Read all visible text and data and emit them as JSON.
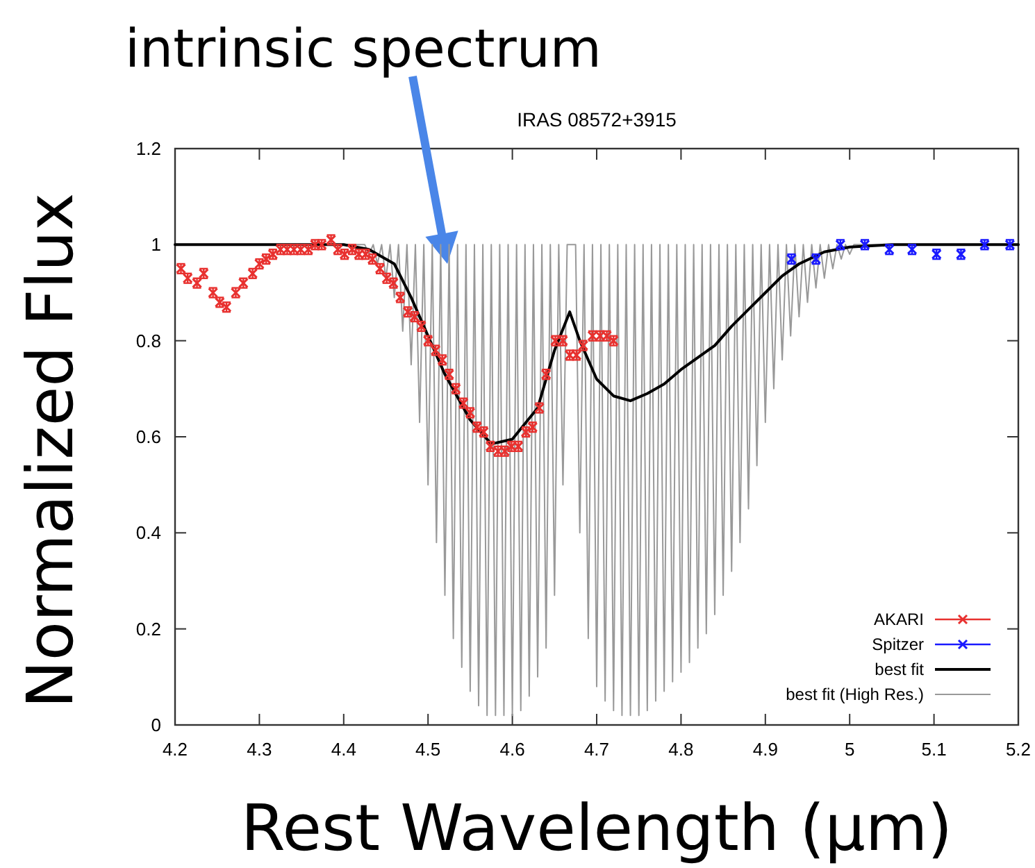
{
  "chart_data": {
    "type": "line",
    "title": "IRAS 08572+3915",
    "xlabel": "Rest Wavelength (μm)",
    "ylabel": "Normalized Flux",
    "xlim": [
      4.2,
      5.2
    ],
    "xticks": [
      4.2,
      4.3,
      4.4,
      4.5,
      4.6,
      4.7,
      4.8,
      4.9,
      5.0,
      5.1,
      5.2
    ],
    "ylim": [
      0,
      1.2
    ],
    "yticks": [
      0,
      0.2,
      0.4,
      0.6,
      0.8,
      1,
      1.2
    ],
    "grid": false,
    "legend": "bottom right",
    "annotations": [
      "intrinsic spectrum"
    ],
    "series": [
      {
        "name": "best fit (High Res.)",
        "type": "line",
        "color": "#999999",
        "x": [
          4.2,
          4.425,
          4.43,
          4.435,
          4.44,
          4.445,
          4.45,
          4.455,
          4.46,
          4.465,
          4.47,
          4.475,
          4.48,
          4.485,
          4.49,
          4.495,
          4.5,
          4.505,
          4.51,
          4.515,
          4.52,
          4.525,
          4.53,
          4.535,
          4.54,
          4.545,
          4.55,
          4.555,
          4.56,
          4.565,
          4.57,
          4.575,
          4.58,
          4.585,
          4.59,
          4.595,
          4.6,
          4.605,
          4.61,
          4.615,
          4.62,
          4.625,
          4.63,
          4.635,
          4.64,
          4.645,
          4.65,
          4.655,
          4.66,
          4.665,
          4.675,
          4.68,
          4.685,
          4.69,
          4.695,
          4.7,
          4.705,
          4.71,
          4.715,
          4.72,
          4.725,
          4.73,
          4.735,
          4.74,
          4.745,
          4.75,
          4.755,
          4.76,
          4.765,
          4.77,
          4.775,
          4.78,
          4.785,
          4.79,
          4.795,
          4.8,
          4.805,
          4.81,
          4.815,
          4.82,
          4.825,
          4.83,
          4.835,
          4.84,
          4.845,
          4.85,
          4.855,
          4.86,
          4.865,
          4.87,
          4.875,
          4.88,
          4.885,
          4.89,
          4.895,
          4.9,
          4.905,
          4.91,
          4.915,
          4.92,
          4.925,
          4.93,
          4.935,
          4.94,
          4.945,
          4.95,
          4.955,
          4.96,
          4.965,
          4.97,
          4.975,
          4.98,
          4.985,
          4.99,
          4.995,
          5.0,
          5.005,
          5.2
        ],
        "values": [
          1,
          1,
          0.98,
          1,
          0.96,
          1,
          0.93,
          1,
          0.89,
          1,
          0.82,
          1,
          0.75,
          1,
          0.63,
          1,
          0.5,
          1,
          0.38,
          1,
          0.27,
          1,
          0.18,
          1,
          0.12,
          1,
          0.07,
          1,
          0.04,
          1,
          0.02,
          1,
          0.02,
          1,
          0.02,
          1,
          0.02,
          1,
          0.03,
          1,
          0.06,
          1,
          0.1,
          1,
          0.16,
          1,
          0.27,
          1,
          0.5,
          1,
          1,
          0.4,
          1,
          0.18,
          1,
          0.08,
          1,
          0.05,
          1,
          0.03,
          1,
          0.02,
          1,
          0.02,
          1,
          0.02,
          1,
          0.03,
          1,
          0.05,
          1,
          0.07,
          1,
          0.09,
          1,
          0.11,
          1,
          0.13,
          1,
          0.16,
          1,
          0.19,
          1,
          0.23,
          1,
          0.27,
          1,
          0.32,
          1,
          0.38,
          1,
          0.45,
          1,
          0.54,
          1,
          0.63,
          1,
          0.7,
          1,
          0.76,
          1,
          0.81,
          1,
          0.85,
          1,
          0.88,
          1,
          0.91,
          1,
          0.93,
          1,
          0.95,
          1,
          0.97,
          1,
          0.98,
          1,
          1
        ]
      },
      {
        "name": "best fit",
        "type": "line",
        "color": "#000000",
        "x": [
          4.2,
          4.4,
          4.43,
          4.46,
          4.48,
          4.5,
          4.52,
          4.55,
          4.575,
          4.6,
          4.63,
          4.65,
          4.668,
          4.68,
          4.7,
          4.72,
          4.74,
          4.76,
          4.78,
          4.8,
          4.82,
          4.84,
          4.86,
          4.88,
          4.9,
          4.92,
          4.94,
          4.97,
          5.0,
          5.05,
          5.2
        ],
        "values": [
          1,
          1,
          0.99,
          0.96,
          0.89,
          0.81,
          0.73,
          0.635,
          0.585,
          0.595,
          0.66,
          0.78,
          0.86,
          0.8,
          0.72,
          0.685,
          0.675,
          0.69,
          0.71,
          0.74,
          0.765,
          0.79,
          0.83,
          0.865,
          0.9,
          0.935,
          0.96,
          0.985,
          0.995,
          1,
          1
        ]
      },
      {
        "name": "AKARI",
        "type": "scatter",
        "color": "#e8312f",
        "marker": "cross",
        "x": [
          4.207,
          4.215,
          4.226,
          4.234,
          4.245,
          4.253,
          4.261,
          4.272,
          4.281,
          4.292,
          4.3,
          4.308,
          4.316,
          4.325,
          4.333,
          4.341,
          4.349,
          4.358,
          4.366,
          4.374,
          4.385,
          4.393,
          4.401,
          4.41,
          4.418,
          4.426,
          4.434,
          4.443,
          4.451,
          4.459,
          4.467,
          4.476,
          4.484,
          4.492,
          4.5,
          4.509,
          4.517,
          4.525,
          4.533,
          4.542,
          4.55,
          4.558,
          4.566,
          4.574,
          4.583,
          4.591,
          4.599,
          4.607,
          4.616,
          4.624,
          4.632,
          4.64,
          4.651,
          4.66,
          4.668,
          4.676,
          4.684,
          4.695,
          4.704,
          4.712,
          4.72
        ],
        "values": [
          0.95,
          0.93,
          0.92,
          0.94,
          0.9,
          0.88,
          0.87,
          0.9,
          0.92,
          0.94,
          0.96,
          0.97,
          0.98,
          0.99,
          0.99,
          0.99,
          0.99,
          0.99,
          1.0,
          1.0,
          1.01,
          0.99,
          0.98,
          0.99,
          0.98,
          0.98,
          0.97,
          0.95,
          0.93,
          0.92,
          0.89,
          0.86,
          0.85,
          0.83,
          0.8,
          0.78,
          0.76,
          0.73,
          0.7,
          0.67,
          0.65,
          0.62,
          0.61,
          0.58,
          0.57,
          0.57,
          0.58,
          0.58,
          0.61,
          0.62,
          0.66,
          0.73,
          0.8,
          0.8,
          0.77,
          0.77,
          0.79,
          0.81,
          0.81,
          0.81,
          0.8
        ],
        "errors": [
          0.01,
          0.01,
          0.01,
          0.01,
          0.01,
          0.01,
          0.01,
          0.01,
          0.01,
          0.01,
          0.01,
          0.01,
          0.01,
          0.01,
          0.01,
          0.01,
          0.01,
          0.01,
          0.01,
          0.01,
          0.01,
          0.01,
          0.01,
          0.01,
          0.01,
          0.01,
          0.01,
          0.01,
          0.01,
          0.01,
          0.01,
          0.01,
          0.01,
          0.01,
          0.01,
          0.01,
          0.01,
          0.01,
          0.01,
          0.01,
          0.01,
          0.01,
          0.01,
          0.01,
          0.01,
          0.01,
          0.01,
          0.01,
          0.01,
          0.01,
          0.01,
          0.01,
          0.01,
          0.01,
          0.01,
          0.01,
          0.01,
          0.01,
          0.01,
          0.01,
          0.01
        ]
      },
      {
        "name": "Spitzer",
        "type": "scatter",
        "color": "#1a1aff",
        "marker": "cross",
        "x": [
          4.931,
          4.96,
          4.989,
          5.018,
          5.047,
          5.074,
          5.103,
          5.132,
          5.16,
          5.19
        ],
        "values": [
          0.97,
          0.97,
          1.0,
          1.0,
          0.99,
          0.99,
          0.98,
          0.98,
          1.0,
          1.0
        ],
        "errors": [
          0.01,
          0.01,
          0.01,
          0.01,
          0.01,
          0.01,
          0.01,
          0.01,
          0.01,
          0.01
        ]
      }
    ]
  }
}
